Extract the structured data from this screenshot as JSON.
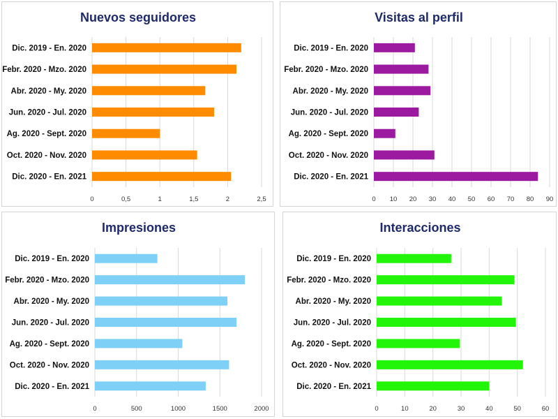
{
  "chart_data": [
    {
      "type": "bar",
      "title": "Nuevos seguidores",
      "categories": [
        "Dic. 2019 - En. 2020",
        "Febr. 2020 - Mzo. 2020",
        "Abr. 2020 - My. 2020",
        "Jun. 2020 - Jul. 2020",
        "Ag. 2020 - Sept. 2020",
        "Oct. 2020 - Nov. 2020",
        "Dic. 2020 - En. 2021"
      ],
      "values": [
        2.2,
        2.13,
        1.67,
        1.8,
        1.0,
        1.55,
        2.05
      ],
      "ticks": [
        "0",
        "0,5",
        "1",
        "1,5",
        "2",
        "2,5"
      ],
      "xlim": [
        0,
        2.5
      ],
      "color": "#ff8c00",
      "grid": true
    },
    {
      "type": "bar",
      "title": "Visitas al perfil",
      "categories": [
        "Dic. 2019 - En. 2020",
        "Febr. 2020 - Mzo. 2020",
        "Abr. 2020 - My. 2020",
        "Jun. 2020 - Jul. 2020",
        "Ag. 2020 - Sept. 2020",
        "Oct. 2020 - Nov. 2020",
        "Dic. 2020 - En. 2021"
      ],
      "values": [
        21,
        28,
        29,
        23,
        11,
        31,
        84
      ],
      "ticks": [
        "0",
        "10",
        "20",
        "30",
        "40",
        "50",
        "60",
        "70",
        "80",
        "90"
      ],
      "xlim": [
        0,
        90
      ],
      "color": "#9c1aa0",
      "grid": true
    },
    {
      "type": "bar",
      "title": "Impresiones",
      "categories": [
        "Dic. 2019 - En. 2020",
        "Febr. 2020 - Mzo. 2020",
        "Abr. 2020 - My. 2020",
        "Jun. 2020 - Jul. 2020",
        "Ag. 2020 - Sept. 2020",
        "Oct. 2020 - Nov. 2020",
        "Dic. 2020 - En. 2021"
      ],
      "values": [
        750,
        1800,
        1590,
        1700,
        1050,
        1610,
        1330
      ],
      "ticks": [
        "0",
        "500",
        "1000",
        "1500",
        "2000"
      ],
      "xlim": [
        0,
        2000
      ],
      "color": "#7fd0f7",
      "grid": true
    },
    {
      "type": "bar",
      "title": "Interacciones",
      "categories": [
        "Dic. 2019 - En. 2020",
        "Febr. 2020 - Mzo. 2020",
        "Abr. 2020 - My. 2020",
        "Jun. 2020 - Jul. 2020",
        "Ag. 2020 - Sept. 2020",
        "Oct. 2020 - Nov. 2020",
        "Dic. 2020 - En. 2021"
      ],
      "values": [
        26.5,
        49,
        44.5,
        49.5,
        29.5,
        52,
        40
      ],
      "ticks": [
        "0",
        "10",
        "20",
        "30",
        "40",
        "50",
        "60"
      ],
      "xlim": [
        0,
        60
      ],
      "color": "#22f50a",
      "grid": true
    }
  ]
}
